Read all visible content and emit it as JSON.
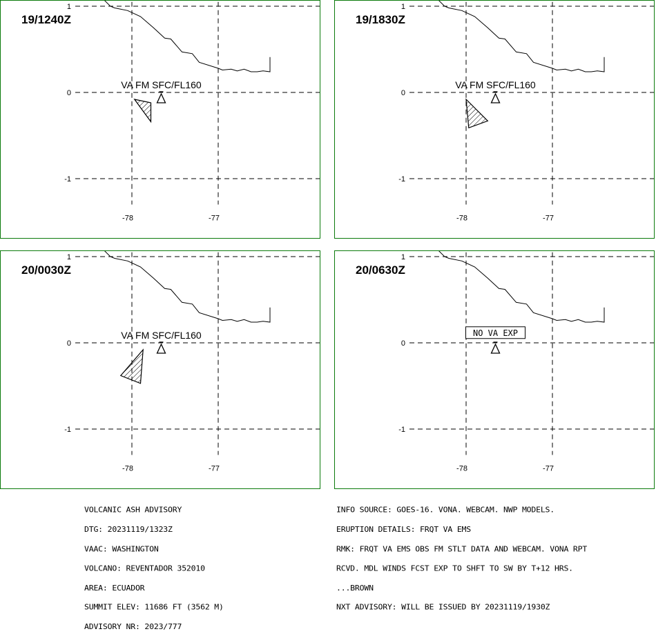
{
  "panels": [
    {
      "time": "19/1240Z",
      "label": "VA FM SFC/FL160",
      "label_boxed": false,
      "area": [
        [
          -77.97,
          -0.08
        ],
        [
          -77.78,
          -0.12
        ],
        [
          -77.78,
          -0.34
        ]
      ]
    },
    {
      "time": "19/1830Z",
      "label": "VA FM SFC/FL160",
      "label_boxed": false,
      "area": [
        [
          -78.0,
          -0.08
        ],
        [
          -77.75,
          -0.33
        ],
        [
          -77.97,
          -0.41
        ]
      ]
    },
    {
      "time": "20/0030Z",
      "label": "VA FM SFC/FL160",
      "label_boxed": false,
      "area": [
        [
          -77.87,
          -0.08
        ],
        [
          -78.13,
          -0.38
        ],
        [
          -77.9,
          -0.47
        ]
      ]
    },
    {
      "time": "20/0630Z",
      "label": "NO VA EXP",
      "label_boxed": true,
      "area": []
    }
  ],
  "axes": {
    "lat_ticks": [
      1,
      0,
      -1
    ],
    "lat_labels": [
      "1",
      "0",
      "-1"
    ],
    "lon_ticks": [
      -78,
      -77
    ],
    "lon_labels": [
      "-78",
      "-77"
    ]
  },
  "volcano": {
    "name": "REVENTADOR",
    "lon": -77.66,
    "lat": -0.08
  },
  "coastline": [
    [
      -78.33,
      1.08
    ],
    [
      -78.25,
      1.0
    ],
    [
      -78.2,
      0.98
    ],
    [
      -78.05,
      0.95
    ],
    [
      -77.9,
      0.88
    ],
    [
      -77.75,
      0.75
    ],
    [
      -77.62,
      0.63
    ],
    [
      -77.55,
      0.62
    ],
    [
      -77.42,
      0.47
    ],
    [
      -77.3,
      0.45
    ],
    [
      -77.22,
      0.35
    ],
    [
      -77.0,
      0.28
    ],
    [
      -76.95,
      0.26
    ],
    [
      -76.85,
      0.27
    ],
    [
      -76.78,
      0.25
    ],
    [
      -76.7,
      0.27
    ],
    [
      -76.62,
      0.24
    ],
    [
      -76.55,
      0.24
    ],
    [
      -76.48,
      0.25
    ],
    [
      -76.4,
      0.24
    ],
    [
      -76.4,
      0.41
    ]
  ],
  "advisory_left": [
    "VOLCANIC ASH ADVISORY",
    "DTG: 20231119/1323Z",
    "VAAC: WASHINGTON",
    "VOLCANO: REVENTADOR 352010",
    "AREA: ECUADOR",
    "SUMMIT ELEV: 11686 FT (3562 M)",
    "ADVISORY NR: 2023/777"
  ],
  "advisory_right": [
    "INFO SOURCE: GOES-16. VONA. WEBCAM. NWP MODELS.",
    "ERUPTION DETAILS: FRQT VA EMS",
    "RMK: FRQT VA EMS OBS FM STLT DATA AND WEBCAM. VONA RPT",
    "RCVD. MDL WINDS FCST EXP TO SHFT TO SW BY T+12 HRS.",
    "...BROWN",
    "NXT ADVISORY: WILL BE ISSUED BY 20231119/1930Z"
  ],
  "colors": {
    "border": "#0a7a0a",
    "lines": "#000000",
    "background": "#ffffff"
  }
}
